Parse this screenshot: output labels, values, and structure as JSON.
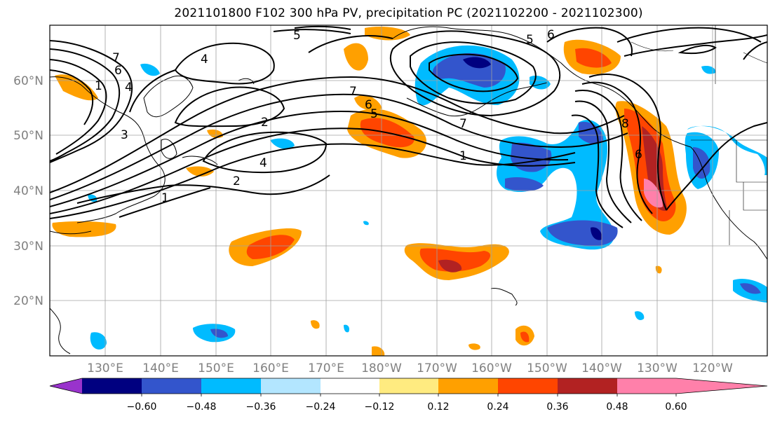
{
  "title": "2021101800 F102 300 hPa PV, precipitation PC (2021102200 - 2021102300)",
  "map": {
    "lon_labels": [
      "130°E",
      "140°E",
      "150°E",
      "160°E",
      "170°E",
      "180°W",
      "170°W",
      "160°W",
      "150°W",
      "140°W",
      "130°W",
      "120°W"
    ],
    "lat_labels": [
      "60°N",
      "50°N",
      "40°N",
      "30°N",
      "20°N"
    ],
    "grid": true
  },
  "contour_labels": [
    "5",
    "6",
    "5",
    "7",
    "6",
    "1",
    "4",
    "7",
    "6",
    "5",
    "7",
    "1",
    "2",
    "4",
    "2",
    "3",
    "1",
    "8",
    "6",
    "4"
  ],
  "colorbar": {
    "colors": [
      "#9933cc",
      "#000080",
      "#3355cc",
      "#00bbff",
      "#b3e6ff",
      "#ffffff",
      "#ffeb80",
      "#ffa000",
      "#ff4500",
      "#b22222",
      "#ff80aa"
    ],
    "tick_labels": [
      "−0.60",
      "−0.48",
      "−0.36",
      "−0.24",
      "−0.12",
      "0.12",
      "0.24",
      "0.36",
      "0.48",
      "0.60"
    ]
  }
}
